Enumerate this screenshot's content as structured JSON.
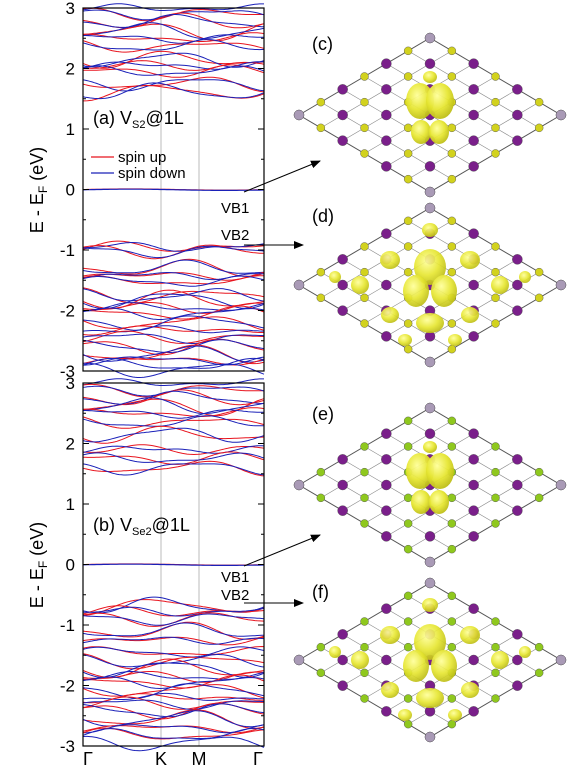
{
  "chart_data": [
    {
      "type": "line",
      "panel_label": "(a)",
      "title_main": "V",
      "title_sub": "S2",
      "title_suffix": "@1L",
      "ylabel": "E - E",
      "ylabel_sub": "F",
      "ylabel_unit": " (eV)",
      "ylim": [
        -3,
        3
      ],
      "yticks": [
        "3",
        "2",
        "1",
        "0",
        "-1",
        "-2",
        "-3"
      ],
      "xticks": [],
      "legend": [
        "spin up",
        "spin down"
      ],
      "legend_position": "left-middle",
      "colors": {
        "up": "#e8141e",
        "down": "#1a20b8"
      },
      "annotations": [
        "VB1",
        "VB2"
      ],
      "vb1_energy": 0.0,
      "vb2_energy": -0.95,
      "band_bases": [
        3.0,
        2.9,
        2.78,
        2.62,
        2.5,
        2.37,
        2.15,
        2.05,
        1.95,
        1.75,
        1.62,
        -0.95,
        -1.02,
        -1.3,
        -1.42,
        -1.52,
        -1.75,
        -1.82,
        -1.95,
        -2.05,
        -2.2,
        -2.32,
        -2.45,
        -2.6,
        -2.72,
        -2.82,
        -2.9,
        -2.98
      ]
    },
    {
      "type": "line",
      "panel_label": "(b)",
      "title_main": "V",
      "title_sub": "Se2",
      "title_suffix": "@1L",
      "ylabel": "E - E",
      "ylabel_sub": "F",
      "ylabel_unit": " (eV)",
      "ylim": [
        -3,
        3
      ],
      "yticks": [
        "3",
        "2",
        "1",
        "0",
        "-1",
        "-2",
        "-3"
      ],
      "xticks": [
        "Γ",
        "K",
        "M",
        "Γ"
      ],
      "colors": {
        "up": "#e8141e",
        "down": "#1a20b8"
      },
      "annotations": [
        "VB1",
        "VB2"
      ],
      "vb1_energy": 0.0,
      "vb2_energy": -0.68,
      "band_bases": [
        3.0,
        2.88,
        2.75,
        2.62,
        2.5,
        2.35,
        2.15,
        1.9,
        1.75,
        1.6,
        -0.68,
        -0.78,
        -0.9,
        -1.1,
        -1.25,
        -1.45,
        -1.6,
        -1.72,
        -1.85,
        -1.95,
        -2.08,
        -2.2,
        -2.3,
        -2.42,
        -2.55,
        -2.7,
        -2.82,
        -2.95
      ]
    }
  ],
  "structures": [
    {
      "label": "(c)",
      "atom": "#d2d21e",
      "iso": "large-center"
    },
    {
      "label": "(d)",
      "atom": "#d2d21e",
      "iso": "wide"
    },
    {
      "label": "(e)",
      "atom": "#8fc81e",
      "iso": "large-center"
    },
    {
      "label": "(f)",
      "atom": "#8fc81e",
      "iso": "wide"
    }
  ]
}
